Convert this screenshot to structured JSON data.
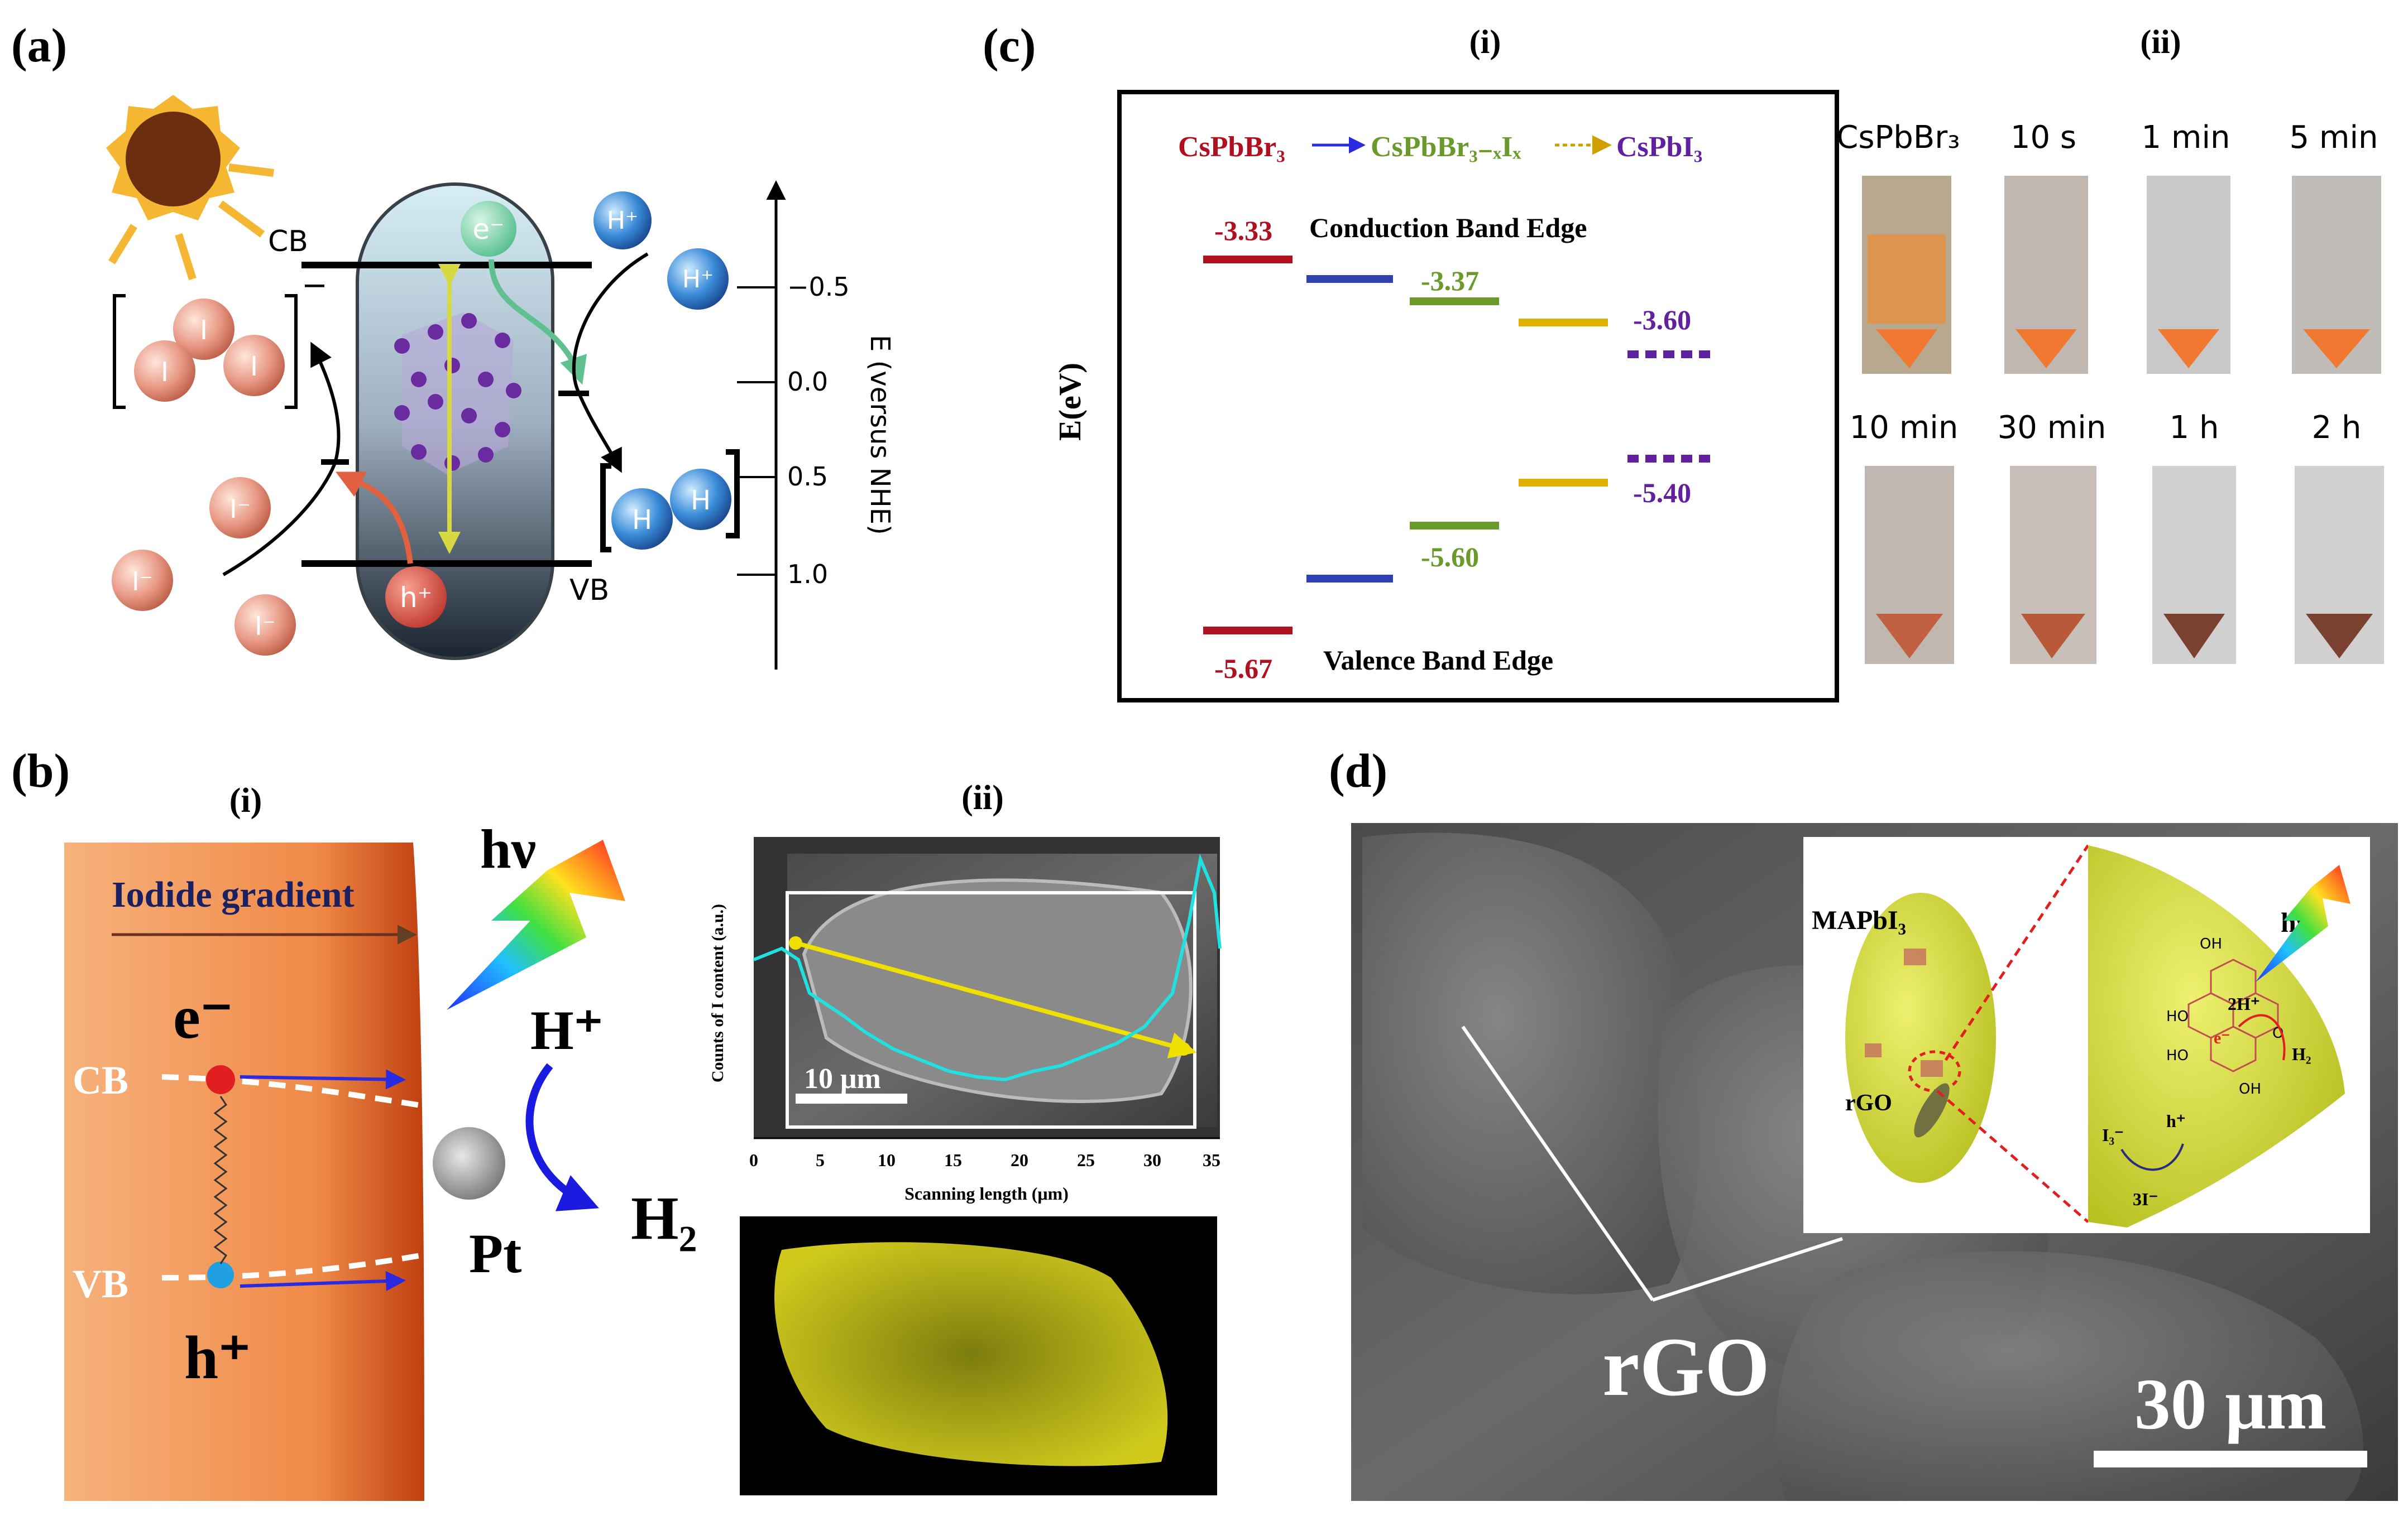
{
  "panel_a": {
    "label": "(a)",
    "cb": "CB",
    "vb": "VB",
    "electron": "e⁻",
    "hole": "h⁺",
    "proton": "H⁺",
    "hydrogen": "H",
    "iodine": "I",
    "iodide": "I⁻",
    "bracket_minus": "−",
    "axis_label": "E (versus NHE)",
    "ticks": [
      "−0.5",
      "0.0",
      "0.5",
      "1.0"
    ]
  },
  "panel_b": {
    "label": "(b)",
    "sub_i": "(i)",
    "sub_ii": "(ii)",
    "iodide_gradient": "Iodide gradient",
    "hv": "hν",
    "electron": "e⁻",
    "hole": "h⁺",
    "cb": "CB",
    "vb": "VB",
    "proton": "H⁺",
    "h2": "H₂",
    "pt": "Pt",
    "scale": "10 μm",
    "ylabel": "Counts of I content (a.u.)",
    "xlabel": "Scanning length (μm)",
    "xticks": [
      "0",
      "5",
      "10",
      "15",
      "20",
      "25",
      "30",
      "35"
    ]
  },
  "panel_c": {
    "label": "(c)",
    "sub_i": "(i)",
    "sub_ii": "(ii)",
    "formula1": "CsPbBr₃",
    "formula2": "CsPbBr₃₋ₓIₓ",
    "formula3": "CsPbI₃",
    "ylabel": "E(eV)",
    "cb_title": "Conduction Band Edge",
    "vb_title": "Valence Band Edge",
    "values": [
      "-3.33",
      "-3.37",
      "-3.60",
      "-5.40",
      "-5.60",
      "-5.67"
    ],
    "photo_labels": [
      "CsPbBr₃",
      "10 s",
      "1 min",
      "5 min",
      "10 min",
      "30 min",
      "1 h",
      "2 h"
    ]
  },
  "panel_d": {
    "label": "(d)",
    "rgo": "rGO",
    "scale": "30 μm",
    "inset_mapbi3": "MAPbI₃",
    "inset_rgo": "rGO",
    "inset_hv": "hν",
    "inset_2h": "2H⁺",
    "inset_e": "e⁻",
    "inset_h2": "H₂",
    "inset_i3": "I₃⁻",
    "inset_h": "h⁺",
    "inset_3i": "3I⁻",
    "oh": "OH",
    "ho": "HO",
    "o": "O"
  },
  "colors": {
    "red": "#b01020",
    "green": "#6a9a2a",
    "yellow": "#e0b000",
    "blue": "#3040b0",
    "purple": "#6020a0"
  }
}
